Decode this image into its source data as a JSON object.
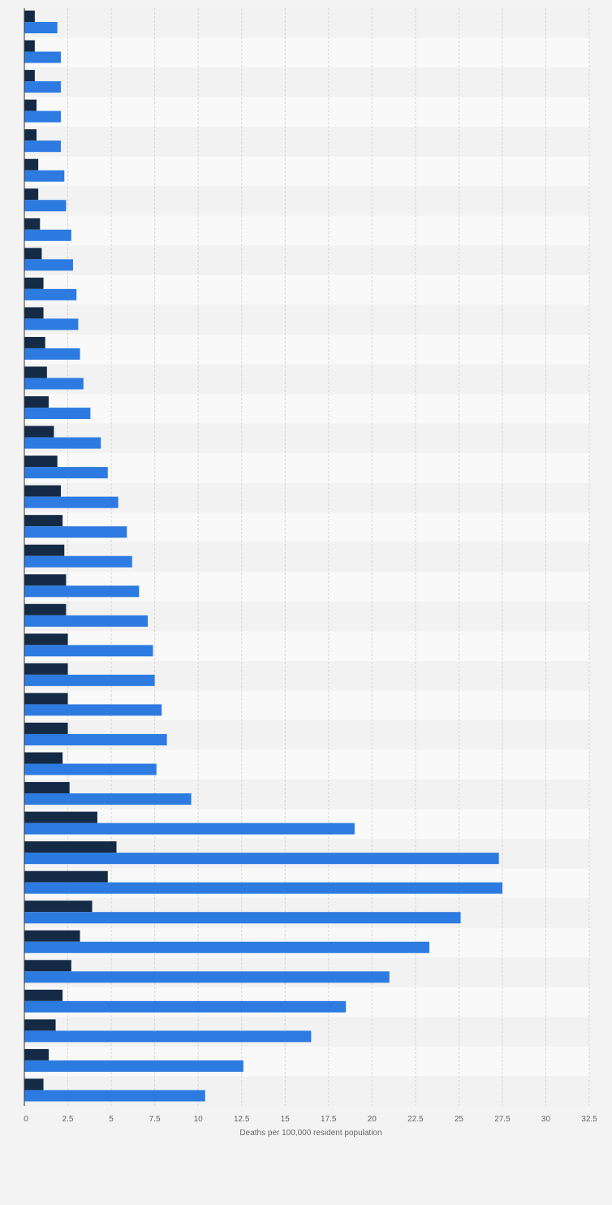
{
  "chart_data": {
    "type": "bar",
    "orientation": "horizontal",
    "xlabel": "Deaths per 100,000 resident population",
    "xlim": [
      0,
      32.5
    ],
    "xticks": [
      "0",
      "2.5",
      "5",
      "7.5",
      "10",
      "12.5",
      "15",
      "17.5",
      "20",
      "22.5",
      "25",
      "27.5",
      "30",
      "32.5"
    ],
    "grid": true,
    "categories": [
      "",
      "",
      "",
      "",
      "",
      "",
      "",
      "",
      "",
      "",
      "",
      "",
      "",
      "",
      "",
      "",
      "",
      "",
      "",
      "",
      "",
      "",
      "",
      "",
      "",
      "",
      "",
      "",
      "",
      "",
      "",
      "",
      "",
      "",
      "",
      "",
      ""
    ],
    "series": [
      {
        "color": "#152b45",
        "values": [
          0.6,
          0.6,
          0.6,
          0.7,
          0.7,
          0.8,
          0.8,
          0.9,
          1.0,
          1.1,
          1.1,
          1.2,
          1.3,
          1.4,
          1.7,
          1.9,
          2.1,
          2.2,
          2.3,
          2.4,
          2.4,
          2.5,
          2.5,
          2.5,
          2.5,
          2.2,
          2.6,
          4.2,
          5.3,
          4.8,
          3.9,
          3.2,
          2.7,
          2.2,
          1.8,
          1.4,
          1.1
        ]
      },
      {
        "color": "#2d7be0",
        "values": [
          1.9,
          2.1,
          2.1,
          2.1,
          2.1,
          2.3,
          2.4,
          2.7,
          2.8,
          3.0,
          3.1,
          3.2,
          3.4,
          3.8,
          4.4,
          4.8,
          5.4,
          5.9,
          6.2,
          6.6,
          7.1,
          7.4,
          7.5,
          7.9,
          8.2,
          7.6,
          9.6,
          19.0,
          27.3,
          27.5,
          25.1,
          23.3,
          21.0,
          18.5,
          16.5,
          12.6,
          10.4
        ]
      }
    ]
  }
}
